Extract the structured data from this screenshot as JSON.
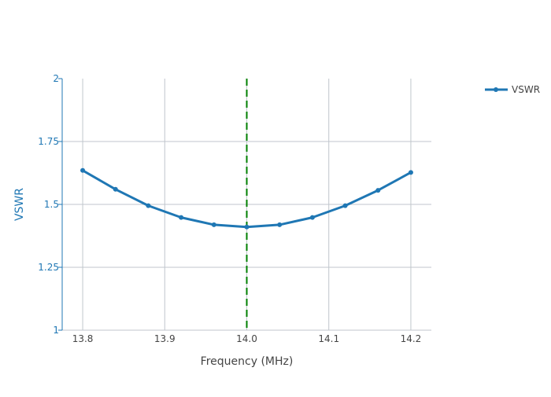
{
  "chart_data": {
    "type": "line",
    "title": "",
    "xlabel": "Frequency (MHz)",
    "ylabel": "VSWR",
    "xlim": [
      13.775,
      14.225
    ],
    "ylim": [
      1,
      2
    ],
    "x_ticks": [
      13.8,
      13.9,
      14.0,
      14.1,
      14.2
    ],
    "x_tick_labels": [
      "13.8",
      "13.9",
      "14.0",
      "14.1",
      "14.2"
    ],
    "y_ticks": [
      1,
      1.25,
      1.5,
      1.75,
      2
    ],
    "y_tick_labels": [
      "1",
      "1.25",
      "1.5",
      "1.75",
      "2"
    ],
    "grid": true,
    "legend_position": "top-right",
    "series": [
      {
        "name": "VSWR",
        "color": "#1f77b4",
        "x": [
          13.8,
          13.84,
          13.88,
          13.92,
          13.96,
          14.0,
          14.04,
          14.08,
          14.12,
          14.16,
          14.2
        ],
        "y": [
          1.635,
          1.56,
          1.495,
          1.448,
          1.419,
          1.41,
          1.419,
          1.448,
          1.495,
          1.556,
          1.627
        ]
      }
    ],
    "reference_line": {
      "x": 14.0,
      "color": "#008000",
      "style": "dashed"
    }
  }
}
